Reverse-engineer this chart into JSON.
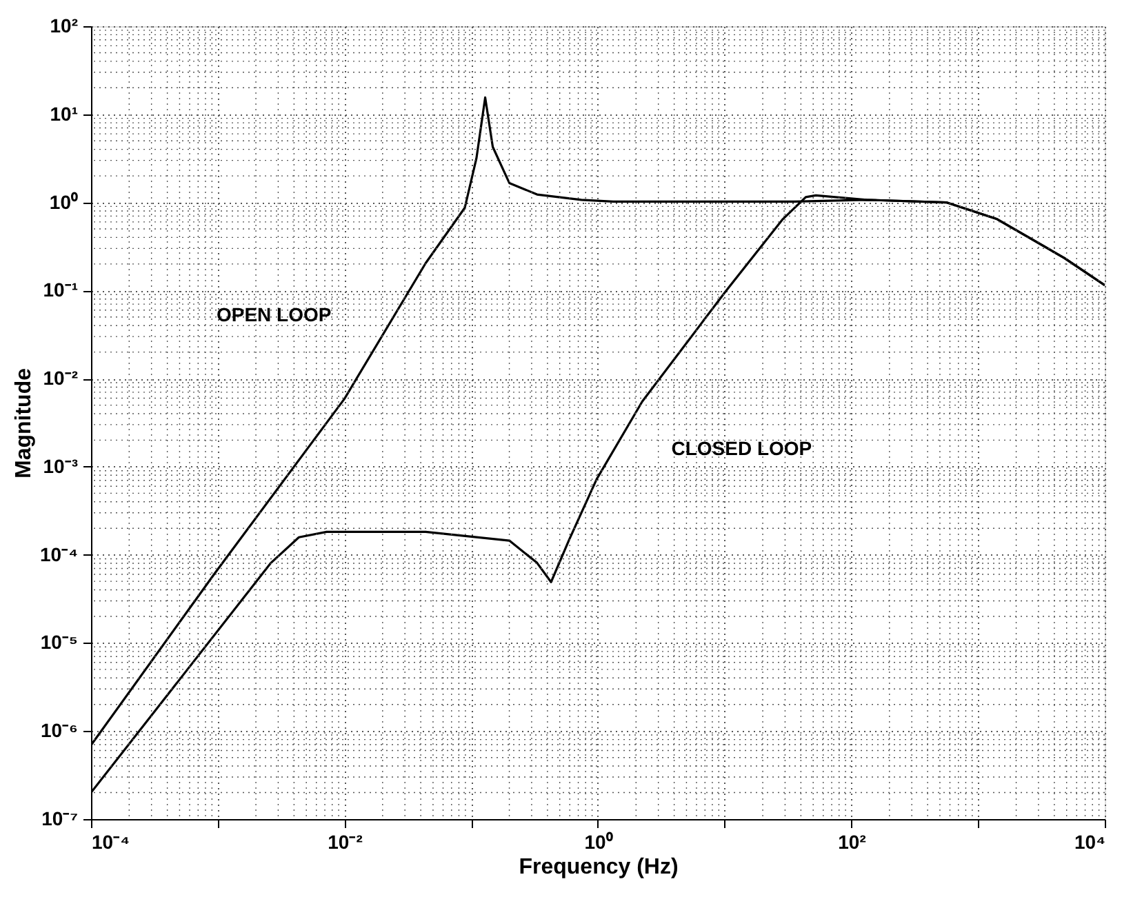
{
  "chart_data": {
    "type": "line",
    "xlabel": "Frequency (Hz)",
    "ylabel": "Magnitude",
    "log": "xy",
    "grid": true,
    "legend": false,
    "line_style": "solid",
    "marker": "none",
    "xlim": [
      0.0001,
      10000
    ],
    "ylim": [
      1e-07,
      100
    ],
    "xticks": [
      {
        "value": 0.0001,
        "label": "10⁻⁴"
      },
      {
        "value": 0.001,
        "label": null
      },
      {
        "value": 0.01,
        "label": "10⁻²"
      },
      {
        "value": 0.1,
        "label": null
      },
      {
        "value": 1,
        "label": "10⁰"
      },
      {
        "value": 10,
        "label": null
      },
      {
        "value": 100,
        "label": "10²"
      },
      {
        "value": 1000,
        "label": null
      },
      {
        "value": 10000,
        "label": "10⁴"
      }
    ],
    "yticks": [
      {
        "value": 1e-07,
        "label": "10⁻⁷"
      },
      {
        "value": 1e-06,
        "label": "10⁻⁶"
      },
      {
        "value": 1e-05,
        "label": "10⁻⁵"
      },
      {
        "value": 0.0001,
        "label": "10⁻⁴"
      },
      {
        "value": 0.001,
        "label": "10⁻³"
      },
      {
        "value": 0.01,
        "label": "10⁻²"
      },
      {
        "value": 0.1,
        "label": "10⁻¹"
      },
      {
        "value": 1,
        "label": "10⁰"
      },
      {
        "value": 10,
        "label": "10¹"
      },
      {
        "value": 100,
        "label": "10²"
      }
    ],
    "series": [
      {
        "name": "OPEN LOOP",
        "color": "#000000",
        "x": [
          0.0001,
          0.00095,
          0.01,
          0.0437,
          0.0891,
          0.11,
          0.129,
          0.148,
          0.2,
          0.331,
          0.741,
          1.32,
          35.5,
          132,
          562,
          1413,
          4786,
          10000
        ],
        "values": [
          6.9e-07,
          6.2e-05,
          0.0059,
          0.204,
          0.871,
          3.16,
          15.5,
          4.27,
          1.66,
          1.23,
          1.07,
          1.02,
          1.02,
          1.07,
          1.0,
          0.646,
          0.234,
          0.115
        ]
      },
      {
        "name": "CLOSED LOOP",
        "color": "#000000",
        "x": [
          0.0001,
          0.00263,
          0.00437,
          0.00724,
          0.0437,
          0.2,
          0.331,
          0.427,
          0.589,
          0.977,
          2.24,
          10.2,
          28.8,
          43.7,
          52.5,
          132,
          562,
          1413,
          4786,
          10000
        ],
        "values": [
          2e-07,
          8.1e-05,
          0.000158,
          0.000182,
          0.000182,
          0.000145,
          8.1e-05,
          4.9e-05,
          0.000145,
          0.00072,
          0.0055,
          0.098,
          0.646,
          1.15,
          1.2,
          1.07,
          1.0,
          0.646,
          0.234,
          0.115
        ]
      }
    ]
  }
}
